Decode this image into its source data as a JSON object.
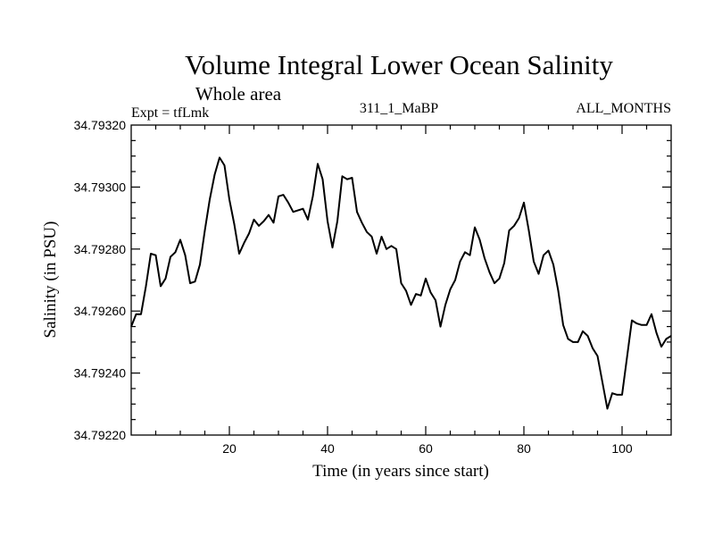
{
  "chart_data": {
    "type": "line",
    "title": "Volume Integral Lower Ocean Salinity",
    "subtitle": "Whole area",
    "annotations": {
      "experiment": "Expt = tfLmk",
      "run": "311_1_MaBP",
      "months": "ALL_MONTHS"
    },
    "xlabel": "Time (in years since start)",
    "ylabel": "Salinity (in PSU)",
    "xlim": [
      0,
      110
    ],
    "ylim": [
      34.7922,
      34.7932
    ],
    "xticks": [
      20,
      40,
      60,
      80,
      100
    ],
    "xtick_labels": [
      "20",
      "40",
      "60",
      "80",
      "100"
    ],
    "yticks": [
      34.7922,
      34.7924,
      34.7926,
      34.7928,
      34.793,
      34.7932
    ],
    "ytick_labels": [
      "34.79220",
      "34.79240",
      "34.79260",
      "34.79280",
      "34.79300",
      "34.79320"
    ],
    "grid": false,
    "series": [
      {
        "name": "salinity",
        "color": "#000000",
        "x": [
          0,
          1,
          2,
          3,
          4,
          5,
          6,
          7,
          8,
          9,
          10,
          11,
          12,
          13,
          14,
          15,
          16,
          17,
          18,
          19,
          20,
          21,
          22,
          23,
          24,
          25,
          26,
          27,
          28,
          29,
          30,
          31,
          32,
          33,
          34,
          35,
          36,
          37,
          38,
          39,
          40,
          41,
          42,
          43,
          44,
          45,
          46,
          47,
          48,
          49,
          50,
          51,
          52,
          53,
          54,
          55,
          56,
          57,
          58,
          59,
          60,
          61,
          62,
          63,
          64,
          65,
          66,
          67,
          68,
          69,
          70,
          71,
          72,
          73,
          74,
          75,
          76,
          77,
          78,
          79,
          80,
          81,
          82,
          83,
          84,
          85,
          86,
          87,
          88,
          89,
          90,
          91,
          92,
          93,
          94,
          95,
          96,
          97,
          98,
          99,
          100,
          101,
          102,
          103,
          104,
          105,
          106,
          107,
          108,
          109,
          110
        ],
        "values": [
          34.79255,
          34.79259,
          34.79259,
          34.79268,
          34.792785,
          34.79278,
          34.79268,
          34.792705,
          34.792775,
          34.79279,
          34.79283,
          34.79278,
          34.79269,
          34.792695,
          34.79275,
          34.79286,
          34.79296,
          34.79304,
          34.793095,
          34.79307,
          34.79296,
          34.79288,
          34.792785,
          34.79282,
          34.79285,
          34.792895,
          34.792875,
          34.79289,
          34.79291,
          34.792885,
          34.79297,
          34.792975,
          34.79295,
          34.79292,
          34.792925,
          34.79293,
          34.792895,
          34.79297,
          34.793075,
          34.793025,
          34.79289,
          34.792805,
          34.79289,
          34.793035,
          34.793025,
          34.79303,
          34.79292,
          34.792885,
          34.792855,
          34.79284,
          34.792785,
          34.79284,
          34.7928,
          34.79281,
          34.7928,
          34.79269,
          34.792665,
          34.79262,
          34.792655,
          34.79265,
          34.792705,
          34.79266,
          34.792635,
          34.79255,
          34.79262,
          34.79267,
          34.7927,
          34.79276,
          34.79279,
          34.79278,
          34.79287,
          34.79283,
          34.79277,
          34.792725,
          34.79269,
          34.792705,
          34.792755,
          34.79286,
          34.792875,
          34.7929,
          34.79295,
          34.79286,
          34.79276,
          34.79272,
          34.79278,
          34.792795,
          34.79275,
          34.792665,
          34.792555,
          34.79251,
          34.7925,
          34.7925,
          34.792535,
          34.79252,
          34.79248,
          34.792455,
          34.79237,
          34.792285,
          34.792335,
          34.79233,
          34.79233,
          34.79245,
          34.79257,
          34.79256,
          34.792555,
          34.792555,
          34.79259,
          34.79253,
          34.792485,
          34.79251,
          34.79252
        ]
      }
    ]
  }
}
